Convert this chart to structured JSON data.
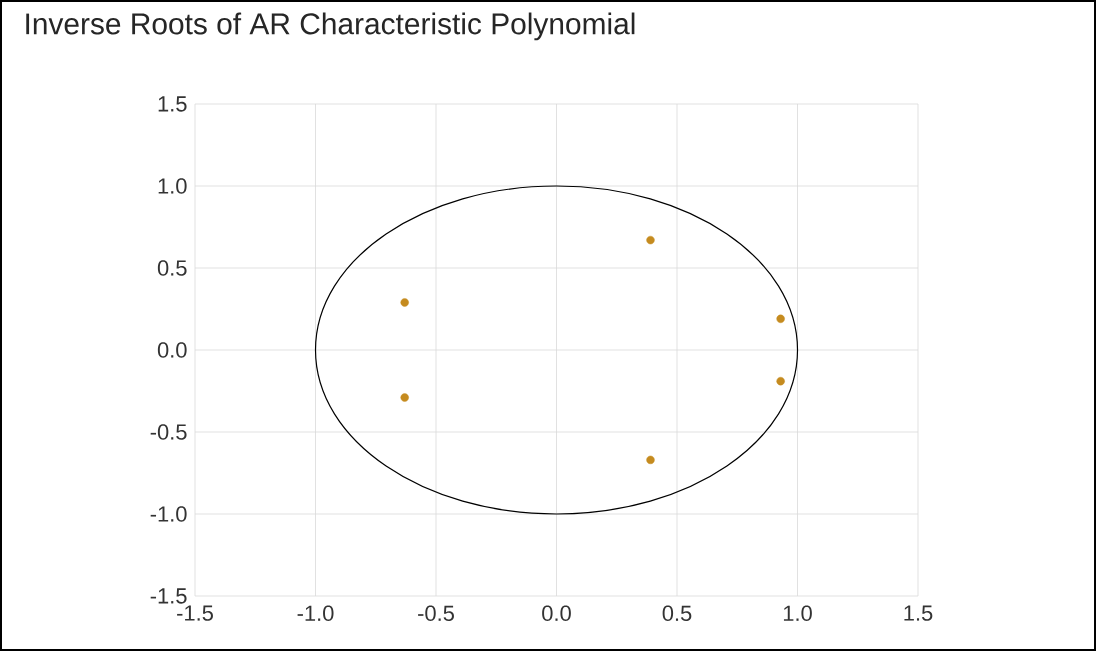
{
  "chart_data": {
    "type": "scatter",
    "title": "Inverse Roots of AR Characteristic Polynomial",
    "xlim": [
      -1.5,
      1.5
    ],
    "ylim": [
      -1.5,
      1.5
    ],
    "xticks": [
      {
        "value": -1.5,
        "label": "-1.5"
      },
      {
        "value": -1.0,
        "label": "-1.0"
      },
      {
        "value": -0.5,
        "label": "-0.5"
      },
      {
        "value": 0,
        "label": "0.0"
      },
      {
        "value": 0.5,
        "label": "0.5"
      },
      {
        "value": 1.0,
        "label": "1.0"
      },
      {
        "value": 1.5,
        "label": "1.5"
      }
    ],
    "yticks": [
      {
        "value": -1.5,
        "label": "-1.5"
      },
      {
        "value": -1.0,
        "label": "-1.0"
      },
      {
        "value": -0.5,
        "label": "-0.5"
      },
      {
        "value": 0,
        "label": "0.0"
      },
      {
        "value": 0.5,
        "label": "0.5"
      },
      {
        "value": 1.0,
        "label": "1.0"
      },
      {
        "value": 1.5,
        "label": "1.5"
      }
    ],
    "grid": true,
    "series": [
      {
        "color": "#c58b1f",
        "x": [
          0.39,
          -0.63,
          0.93,
          0.93,
          -0.63,
          0.39
        ],
        "values": [
          0.67,
          0.29,
          0.19,
          -0.19,
          -0.29,
          -0.67
        ]
      }
    ]
  }
}
